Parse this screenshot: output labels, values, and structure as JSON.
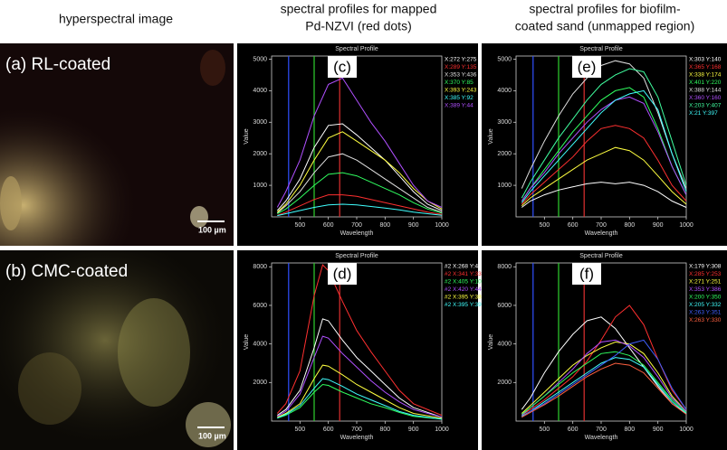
{
  "headers": [
    [
      "hyperspectral image"
    ],
    [
      "spectral profiles for mapped",
      "Pd-NZVI (red dots)"
    ],
    [
      "spectral profiles for biofilm-",
      "coated sand (unmapped region)"
    ]
  ],
  "images": [
    {
      "label": "(a) RL-coated",
      "scale": "100 µm"
    },
    {
      "label": "(b) CMC-coated",
      "scale": "100 µm"
    }
  ],
  "plots": [
    {
      "label": "(c)",
      "title": "Spectral Profile",
      "xlabel": "Wavelength",
      "ylabel": "Value",
      "xlim": [
        400,
        1000
      ],
      "xticks": [
        500,
        600,
        700,
        800,
        900,
        1000
      ],
      "ylim": [
        0,
        5100
      ],
      "yticks": [
        1000,
        2000,
        3000,
        4000,
        5000
      ],
      "marker_lines": [
        {
          "value": 460,
          "color": "#3050ff"
        },
        {
          "value": 550,
          "color": "#30d030"
        },
        {
          "value": 640,
          "color": "#e03030"
        }
      ],
      "x": [
        420,
        450,
        500,
        550,
        600,
        650,
        700,
        750,
        800,
        850,
        900,
        950,
        1000
      ],
      "series": [
        {
          "name": "X:272 Y:275",
          "color": "#ffffff",
          "values": [
            200,
            500,
            1200,
            2200,
            2900,
            2950,
            2600,
            2200,
            1800,
            1300,
            800,
            400,
            200
          ]
        },
        {
          "name": "X:289 Y:135",
          "color": "#ff3030",
          "values": [
            50,
            150,
            350,
            550,
            700,
            700,
            650,
            550,
            450,
            350,
            250,
            150,
            80
          ]
        },
        {
          "name": "X:353 Y:436",
          "color": "#e0e0e0",
          "values": [
            120,
            350,
            800,
            1400,
            1900,
            2000,
            1800,
            1500,
            1200,
            900,
            600,
            300,
            150
          ]
        },
        {
          "name": "X:370 Y:85",
          "color": "#30ff60",
          "values": [
            100,
            250,
            600,
            1000,
            1350,
            1400,
            1300,
            1100,
            900,
            700,
            450,
            250,
            120
          ]
        },
        {
          "name": "X:393 Y:243",
          "color": "#ffff40",
          "values": [
            150,
            400,
            1000,
            1800,
            2500,
            2700,
            2400,
            2100,
            1800,
            1400,
            900,
            500,
            250
          ]
        },
        {
          "name": "X:385 Y:92",
          "color": "#40ffff",
          "values": [
            40,
            100,
            200,
            300,
            380,
            400,
            380,
            330,
            280,
            220,
            150,
            100,
            50
          ]
        },
        {
          "name": "X:389 Y:44",
          "color": "#b050ff",
          "values": [
            300,
            800,
            1800,
            3200,
            4200,
            4400,
            3700,
            3000,
            2400,
            1700,
            1000,
            500,
            300
          ]
        }
      ]
    },
    {
      "label": "(d)",
      "title": "Spectral Profile",
      "xlabel": "Wavelength",
      "ylabel": "Value",
      "xlim": [
        400,
        1000
      ],
      "xticks": [
        500,
        600,
        700,
        800,
        900,
        1000
      ],
      "ylim": [
        0,
        8200
      ],
      "yticks": [
        2000,
        4000,
        6000,
        8000
      ],
      "marker_lines": [
        {
          "value": 460,
          "color": "#3050ff"
        },
        {
          "value": 550,
          "color": "#30d030"
        },
        {
          "value": 640,
          "color": "#e03030"
        }
      ],
      "x": [
        420,
        450,
        500,
        550,
        580,
        600,
        650,
        700,
        750,
        800,
        850,
        900,
        1000
      ],
      "series": [
        {
          "name": "#2 X:268 Y:423",
          "color": "#ffffff",
          "values": [
            300,
            600,
            1600,
            3800,
            5300,
            5200,
            4200,
            3300,
            2600,
            1900,
            1200,
            700,
            200
          ]
        },
        {
          "name": "#2 X:341 Y:333",
          "color": "#ff3030",
          "values": [
            400,
            900,
            2600,
            6500,
            8100,
            7800,
            6200,
            4700,
            3600,
            2600,
            1600,
            900,
            300
          ]
        },
        {
          "name": "#2 X:405 Y:106",
          "color": "#30ff60",
          "values": [
            150,
            300,
            700,
            1500,
            1900,
            1850,
            1500,
            1200,
            900,
            700,
            450,
            250,
            100
          ]
        },
        {
          "name": "#2 X:420 Y:446",
          "color": "#b050ff",
          "values": [
            250,
            500,
            1400,
            3300,
            4400,
            4300,
            3500,
            2800,
            2100,
            1500,
            1000,
            600,
            200
          ]
        },
        {
          "name": "#2 X:395 Y:383",
          "color": "#ffff40",
          "values": [
            200,
            400,
            900,
            2200,
            2900,
            2850,
            2400,
            1900,
            1500,
            1100,
            700,
            400,
            150
          ]
        },
        {
          "name": "#2 X:395 Y:396",
          "color": "#40ffff",
          "values": [
            150,
            350,
            800,
            1700,
            2200,
            2150,
            1800,
            1400,
            1100,
            800,
            500,
            300,
            100
          ]
        }
      ]
    },
    {
      "label": "(e)",
      "title": "Spectral Profile",
      "xlabel": "Wavelength",
      "ylabel": "Value",
      "xlim": [
        400,
        1000
      ],
      "xticks": [
        500,
        600,
        700,
        800,
        900,
        1000
      ],
      "ylim": [
        0,
        5100
      ],
      "yticks": [
        1000,
        2000,
        3000,
        4000,
        5000
      ],
      "marker_lines": [
        {
          "value": 460,
          "color": "#3050ff"
        },
        {
          "value": 550,
          "color": "#30d030"
        },
        {
          "value": 640,
          "color": "#e03030"
        }
      ],
      "x": [
        420,
        450,
        500,
        550,
        600,
        650,
        700,
        750,
        800,
        850,
        900,
        950,
        1000
      ],
      "series": [
        {
          "name": "X:303 Y:140",
          "color": "#ffffff",
          "values": [
            300,
            500,
            700,
            850,
            950,
            1050,
            1100,
            1050,
            1100,
            1000,
            800,
            500,
            300
          ]
        },
        {
          "name": "X:365 Y:168",
          "color": "#ff3030",
          "values": [
            400,
            700,
            1100,
            1500,
            1900,
            2400,
            2800,
            2900,
            2800,
            2500,
            1800,
            1000,
            500
          ]
        },
        {
          "name": "X:338 Y:174",
          "color": "#ffff40",
          "values": [
            350,
            600,
            900,
            1200,
            1500,
            1800,
            2000,
            2200,
            2100,
            1800,
            1300,
            800,
            400
          ]
        },
        {
          "name": "X:401 Y:220",
          "color": "#30ff60",
          "values": [
            500,
            900,
            1500,
            2100,
            2700,
            3200,
            3700,
            4000,
            4100,
            3800,
            2800,
            1600,
            700
          ]
        },
        {
          "name": "X:388 Y:144",
          "color": "#e0e0e0",
          "values": [
            900,
            1500,
            2400,
            3200,
            3900,
            4400,
            4800,
            4950,
            4850,
            4400,
            3300,
            2000,
            900
          ]
        },
        {
          "name": "X:360 Y:160",
          "color": "#b050ff",
          "values": [
            500,
            900,
            1400,
            2000,
            2500,
            3000,
            3400,
            3700,
            3800,
            3600,
            2700,
            1600,
            700
          ]
        },
        {
          "name": "X:203 Y:407",
          "color": "#40ffa0",
          "values": [
            600,
            1100,
            1800,
            2500,
            3100,
            3700,
            4200,
            4500,
            4700,
            4600,
            3800,
            2400,
            1000
          ]
        },
        {
          "name": "X:21 Y:397",
          "color": "#40ffff",
          "values": [
            450,
            800,
            1300,
            1800,
            2300,
            2800,
            3300,
            3700,
            3900,
            4000,
            3400,
            2000,
            800
          ]
        }
      ]
    },
    {
      "label": "(f)",
      "title": "Spectral Profile",
      "xlabel": "Wavelength",
      "ylabel": "Value",
      "xlim": [
        400,
        1000
      ],
      "xticks": [
        500,
        600,
        700,
        800,
        900,
        1000
      ],
      "ylim": [
        0,
        8200
      ],
      "yticks": [
        2000,
        4000,
        6000,
        8000
      ],
      "marker_lines": [
        {
          "value": 460,
          "color": "#3050ff"
        },
        {
          "value": 550,
          "color": "#30d030"
        },
        {
          "value": 640,
          "color": "#e03030"
        }
      ],
      "x": [
        420,
        450,
        500,
        550,
        600,
        650,
        700,
        750,
        800,
        850,
        900,
        950,
        1000
      ],
      "series": [
        {
          "name": "X:179 Y:308",
          "color": "#ffffff",
          "values": [
            600,
            1200,
            2500,
            3600,
            4500,
            5200,
            5400,
            4800,
            3800,
            2800,
            1800,
            900,
            400
          ]
        },
        {
          "name": "X:285 Y:253",
          "color": "#ff3030",
          "values": [
            300,
            600,
            1100,
            1700,
            2300,
            3100,
            4200,
            5400,
            6000,
            5000,
            3200,
            1600,
            600
          ]
        },
        {
          "name": "X:271 Y:251",
          "color": "#ffff40",
          "values": [
            400,
            800,
            1500,
            2200,
            2900,
            3400,
            3800,
            4100,
            4000,
            3500,
            2500,
            1300,
            500
          ]
        },
        {
          "name": "X:353 Y:386",
          "color": "#b050ff",
          "values": [
            300,
            700,
            1300,
            2000,
            2700,
            3500,
            4100,
            4200,
            3900,
            3300,
            2300,
            1200,
            500
          ]
        },
        {
          "name": "X:200 Y:350",
          "color": "#30ff60",
          "values": [
            350,
            700,
            1300,
            1900,
            2500,
            3000,
            3500,
            3600,
            3400,
            2900,
            2000,
            1100,
            450
          ]
        },
        {
          "name": "X:205 Y:332",
          "color": "#40ffff",
          "values": [
            250,
            500,
            1000,
            1500,
            2000,
            2500,
            3000,
            3300,
            3200,
            2800,
            1900,
            1000,
            400
          ]
        },
        {
          "name": "X:263 Y:351",
          "color": "#4060ff",
          "values": [
            200,
            500,
            900,
            1400,
            1900,
            2400,
            2900,
            3400,
            4000,
            4200,
            3200,
            1700,
            600
          ]
        },
        {
          "name": "X:263 Y:330",
          "color": "#ff6040",
          "values": [
            200,
            450,
            850,
            1300,
            1800,
            2300,
            2700,
            3000,
            2900,
            2500,
            1700,
            900,
            350
          ]
        }
      ]
    }
  ]
}
